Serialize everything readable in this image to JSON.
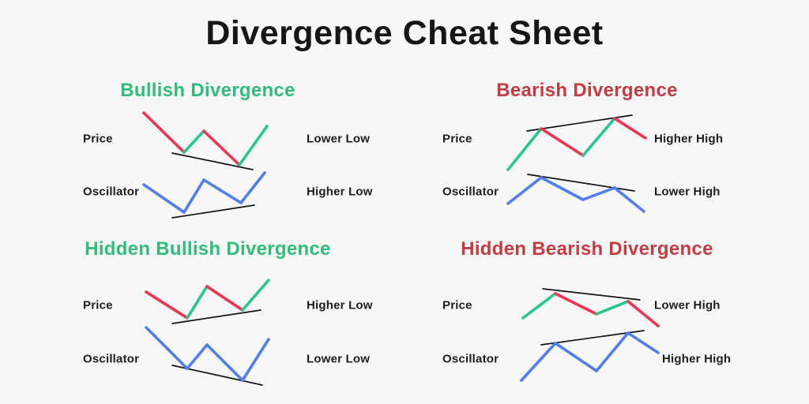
{
  "title": "Divergence Cheat Sheet",
  "colors": {
    "background": "#f7f7f7",
    "text": "#1c1c1c",
    "green_heading": "#30bd7b",
    "red_heading": "#c63a42",
    "red": "#ef3350",
    "green": "#27c78c",
    "blue": "#507df0",
    "trendline": "#151515"
  },
  "panels": [
    {
      "heading": "Bullish Divergence",
      "rows": [
        {
          "label": "Price",
          "annotation": "Lower Low",
          "chart": {
            "type": "line",
            "size": [
              160,
              76
            ],
            "points": [
              [
                2,
                2
              ],
              [
                53,
                52
              ],
              [
                78,
                25
              ],
              [
                123,
                68
              ],
              [
                158,
                19
              ]
            ],
            "segment_colors": [
              "red",
              "green",
              "red",
              "green"
            ],
            "trendline": [
              [
                38,
                53
              ],
              [
                140,
                74
              ]
            ]
          }
        },
        {
          "label": "Oscillator",
          "annotation": "Higher Low",
          "chart": {
            "type": "line",
            "size": [
              157,
              61
            ],
            "points": [
              [
                2,
                17
              ],
              [
                53,
                52
              ],
              [
                78,
                11
              ],
              [
                125,
                40
              ],
              [
                155,
                2
              ]
            ],
            "segment_colors": [
              "blue",
              "blue",
              "blue",
              "blue"
            ],
            "trendline": [
              [
                38,
                59
              ],
              [
                142,
                43
              ]
            ]
          }
        }
      ]
    },
    {
      "heading": "Bearish Divergence",
      "rows": [
        {
          "label": "Price",
          "annotation": "Higher High",
          "chart": {
            "type": "line",
            "size": [
              178,
              74
            ],
            "points": [
              [
                2,
                72
              ],
              [
                44,
                20
              ],
              [
                97,
                54
              ],
              [
                137,
                7
              ],
              [
                176,
                32
              ]
            ],
            "segment_colors": [
              "green",
              "red",
              "green",
              "red"
            ],
            "trendline": [
              [
                26,
                23
              ],
              [
                159,
                3
              ]
            ]
          }
        },
        {
          "label": "Oscillator",
          "annotation": "Lower High",
          "chart": {
            "type": "line",
            "size": [
              176,
              51
            ],
            "points": [
              [
                2,
                39
              ],
              [
                44,
                6
              ],
              [
                97,
                34
              ],
              [
                137,
                19
              ],
              [
                174,
                49
              ]
            ],
            "segment_colors": [
              "blue",
              "blue",
              "blue",
              "blue"
            ],
            "trendline": [
              [
                27,
                2
              ],
              [
                162,
                23
              ]
            ]
          }
        }
      ]
    },
    {
      "heading": "Hidden Bullish Divergence",
      "rows": [
        {
          "label": "Price",
          "annotation": "Higher Low",
          "chart": {
            "type": "line",
            "size": [
              159,
              59
            ],
            "points": [
              [
                2,
                17
              ],
              [
                54,
                50
              ],
              [
                79,
                10
              ],
              [
                124,
                40
              ],
              [
                157,
                2
              ]
            ],
            "segment_colors": [
              "red",
              "green",
              "red",
              "green"
            ],
            "trendline": [
              [
                35,
                57
              ],
              [
                147,
                40
              ]
            ]
          }
        },
        {
          "label": "Oscillator",
          "annotation": "Lower Low",
          "chart": {
            "type": "line",
            "size": [
              159,
              77
            ],
            "points": [
              [
                2,
                2
              ],
              [
                54,
                54
              ],
              [
                79,
                24
              ],
              [
                124,
                69
              ],
              [
                157,
                17
              ]
            ],
            "segment_colors": [
              "blue",
              "blue",
              "blue",
              "blue"
            ],
            "trendline": [
              [
                35,
                50
              ],
              [
                149,
                75
              ]
            ]
          }
        }
      ]
    },
    {
      "heading": "Hidden Bearish Divergence",
      "rows": [
        {
          "label": "Price",
          "annotation": "Lower High",
          "chart": {
            "type": "line",
            "size": [
              173,
              51
            ],
            "points": [
              [
                2,
                39
              ],
              [
                43,
                8
              ],
              [
                95,
                34
              ],
              [
                135,
                18
              ],
              [
                173,
                49
              ]
            ],
            "segment_colors": [
              "green",
              "red",
              "green",
              "red"
            ],
            "trendline": [
              [
                27,
                2
              ],
              [
                150,
                16
              ]
            ]
          }
        },
        {
          "label": "Oscillator",
          "annotation": "Higher High",
          "chart": {
            "type": "line",
            "size": [
              177,
              67
            ],
            "points": [
              [
                2,
                65
              ],
              [
                45,
                18
              ],
              [
                97,
                53
              ],
              [
                137,
                5
              ],
              [
                175,
                30
              ]
            ],
            "segment_colors": [
              "blue",
              "blue",
              "blue",
              "blue"
            ],
            "trendline": [
              [
                27,
                20
              ],
              [
                157,
                2
              ]
            ]
          }
        }
      ]
    }
  ]
}
